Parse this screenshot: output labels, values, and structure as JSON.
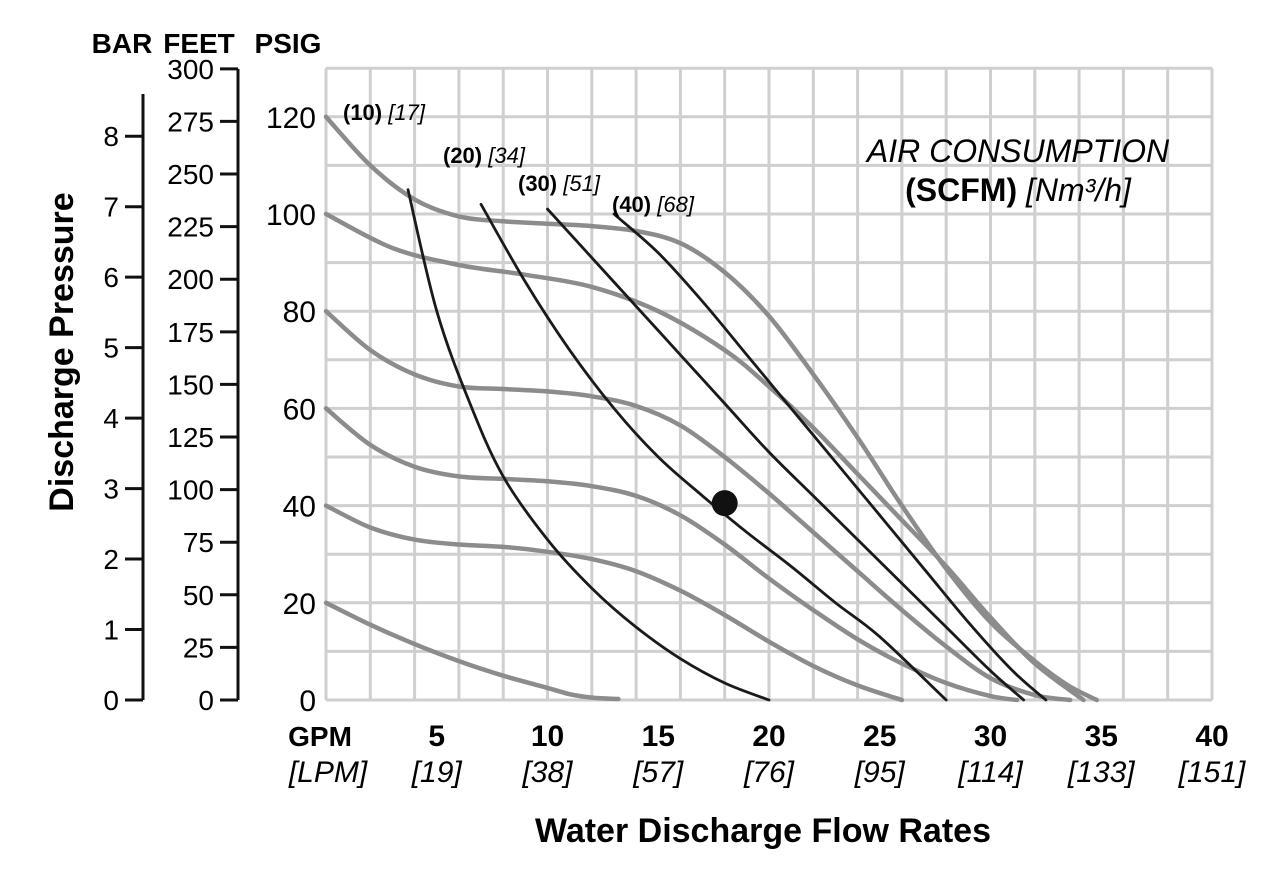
{
  "chart_data": {
    "type": "line",
    "title": "",
    "xlabel": "Water Discharge Flow Rates",
    "ylabel": "Discharge Pressure",
    "x_unit_primary": "GPM",
    "x_unit_secondary": "[LPM]",
    "x_ticks": [
      {
        "value": 5,
        "label": "5",
        "sublabel": "[19]"
      },
      {
        "value": 10,
        "label": "10",
        "sublabel": "[38]"
      },
      {
        "value": 15,
        "label": "15",
        "sublabel": "[57]"
      },
      {
        "value": 20,
        "label": "20",
        "sublabel": "[76]"
      },
      {
        "value": 25,
        "label": "25",
        "sublabel": "[95]"
      },
      {
        "value": 30,
        "label": "30",
        "sublabel": "[114]"
      },
      {
        "value": 35,
        "label": "35",
        "sublabel": "[133]"
      },
      {
        "value": 40,
        "label": "40",
        "sublabel": "[151]"
      }
    ],
    "xlim": [
      0,
      40
    ],
    "ylim": [
      0,
      130
    ],
    "grid": true,
    "y_axes": [
      {
        "name": "BAR",
        "ticks": [
          0,
          1,
          2,
          3,
          4,
          5,
          6,
          7,
          8
        ]
      },
      {
        "name": "FEET",
        "ticks": [
          0,
          25,
          50,
          75,
          100,
          125,
          150,
          175,
          200,
          225,
          250,
          275,
          300
        ]
      },
      {
        "name": "PSIG",
        "ticks": [
          0,
          20,
          40,
          60,
          80,
          100,
          120
        ]
      }
    ],
    "legend_title": "AIR CONSUMPTION",
    "legend_units_bold": "(SCFM)",
    "legend_units_ital": "[Nm³/h]",
    "air_labels": [
      {
        "scfm": "(10)",
        "nm3h": "[17]"
      },
      {
        "scfm": "(20)",
        "nm3h": "[34]"
      },
      {
        "scfm": "(30)",
        "nm3h": "[51]"
      },
      {
        "scfm": "(40)",
        "nm3h": "[68]"
      }
    ],
    "series_pressure_curves": [
      {
        "x": [
          0,
          2,
          4,
          6,
          8,
          10,
          12,
          14,
          16,
          18,
          20,
          22,
          24,
          26,
          28,
          30,
          32,
          33.5,
          34.8
        ],
        "y": [
          120,
          110,
          103,
          99.5,
          98.5,
          98,
          97.5,
          96.5,
          94,
          88,
          79,
          67,
          54,
          40,
          27,
          16,
          8,
          3,
          0
        ]
      },
      {
        "x": [
          0,
          3,
          6,
          9,
          12,
          15,
          18,
          20,
          22,
          24,
          26,
          28,
          30,
          32,
          34.2
        ],
        "y": [
          100,
          93,
          89.5,
          87.5,
          85,
          80,
          72,
          64.5,
          56,
          46.5,
          37,
          27.5,
          17,
          7.5,
          0
        ]
      },
      {
        "x": [
          0,
          2,
          4,
          6,
          8,
          10,
          12,
          14,
          16,
          18,
          20,
          22,
          24,
          26,
          28,
          30,
          32,
          33.6
        ],
        "y": [
          80,
          72,
          67,
          64.5,
          64,
          63.5,
          62.5,
          60.5,
          56.5,
          50,
          42.5,
          34.5,
          26.5,
          18.5,
          11,
          4.5,
          1,
          0
        ]
      },
      {
        "x": [
          0,
          2,
          4,
          6,
          8,
          10,
          12,
          14,
          16,
          18,
          20,
          22,
          24,
          26,
          28,
          30,
          31.2
        ],
        "y": [
          60,
          52.5,
          48,
          46,
          45.5,
          45,
          44,
          42,
          38,
          32,
          25,
          18.5,
          12.5,
          7.5,
          3.5,
          0.8,
          0
        ]
      },
      {
        "x": [
          0,
          2,
          4,
          6,
          8,
          10,
          12,
          14,
          16,
          18,
          20,
          22,
          24,
          26
        ],
        "y": [
          40,
          35.5,
          33,
          32,
          31.5,
          30.5,
          29,
          26.5,
          22.5,
          17.5,
          12,
          7,
          3,
          0
        ]
      },
      {
        "x": [
          0,
          2,
          4,
          6,
          8,
          10,
          11,
          12,
          13.2
        ],
        "y": [
          20,
          15.5,
          11.5,
          8,
          5,
          2.5,
          1.2,
          0.5,
          0.2
        ]
      }
    ],
    "series_air_lines": [
      {
        "name": "(10) [17]",
        "x": [
          3.7,
          5,
          6.5,
          8,
          10,
          12,
          14,
          16,
          18,
          20
        ],
        "y": [
          105,
          80,
          61,
          46,
          33,
          23,
          15,
          8.5,
          3.5,
          0
        ]
      },
      {
        "x": [
          7,
          9,
          11,
          13,
          15,
          17,
          19,
          21,
          23,
          25,
          28
        ],
        "y": [
          102,
          86,
          72,
          60,
          50,
          42,
          34.5,
          27.5,
          20,
          13,
          0
        ]
      },
      {
        "x": [
          10,
          12,
          14,
          16,
          18,
          20,
          22,
          24,
          26,
          28,
          30,
          31.5
        ],
        "y": [
          101,
          91,
          81,
          71,
          61,
          51,
          42,
          33,
          24,
          15,
          6,
          0
        ]
      },
      {
        "x": [
          13,
          15,
          17,
          19,
          21,
          23,
          25,
          27,
          29,
          31,
          32.5
        ],
        "y": [
          100,
          92,
          82,
          71,
          60,
          49,
          38,
          27,
          16,
          6,
          0
        ]
      }
    ],
    "operating_point": {
      "x": 18,
      "y": 40.5
    }
  }
}
